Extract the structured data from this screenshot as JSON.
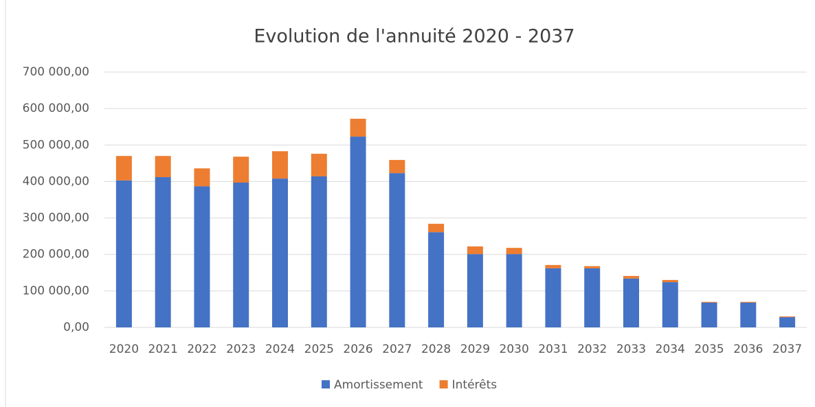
{
  "chart_data": {
    "type": "stacked_bar",
    "title": "Evolution de l'annuité 2020 - 2037",
    "categories": [
      "2020",
      "2021",
      "2022",
      "2023",
      "2024",
      "2025",
      "2026",
      "2027",
      "2028",
      "2029",
      "2030",
      "2031",
      "2032",
      "2033",
      "2034",
      "2035",
      "2036",
      "2037"
    ],
    "series": [
      {
        "name": "Amortissement",
        "color": "#4472c4",
        "values": [
          403000,
          412000,
          387000,
          397000,
          408000,
          414000,
          523000,
          423000,
          261000,
          201000,
          201000,
          162000,
          162000,
          134000,
          124000,
          68000,
          68000,
          28000
        ]
      },
      {
        "name": "Intérêts",
        "color": "#ed7d31",
        "values": [
          67000,
          58000,
          49000,
          71000,
          75000,
          62000,
          49000,
          36000,
          23000,
          21000,
          17000,
          9000,
          6000,
          7000,
          6000,
          2000,
          2000,
          2000
        ]
      }
    ],
    "ylim": [
      0,
      700000
    ],
    "yticks": [
      {
        "value": 0,
        "label": "0,00"
      },
      {
        "value": 100000,
        "label": "100 000,00"
      },
      {
        "value": 200000,
        "label": "200 000,00"
      },
      {
        "value": 300000,
        "label": "300 000,00"
      },
      {
        "value": 400000,
        "label": "400 000,00"
      },
      {
        "value": 500000,
        "label": "500 000,00"
      },
      {
        "value": 600000,
        "label": "600 000,00"
      },
      {
        "value": 700000,
        "label": "700 000,00"
      }
    ],
    "grid": true,
    "legend": "bottom"
  }
}
